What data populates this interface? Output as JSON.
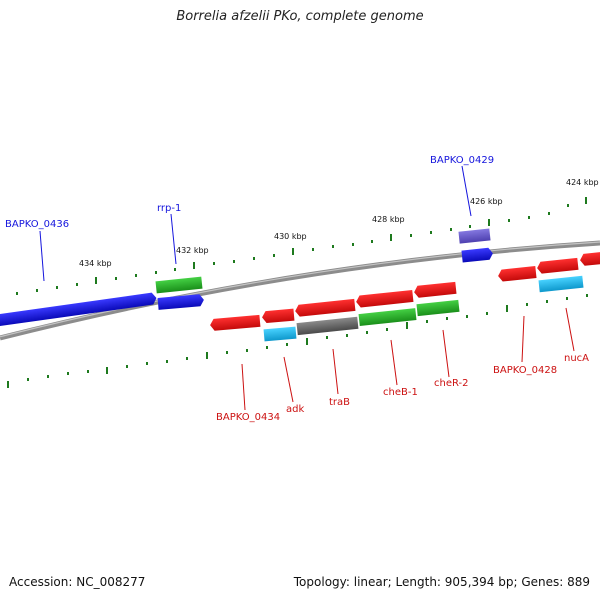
{
  "title": "Borrelia afzelii PKo, complete genome",
  "footer": {
    "accession": "Accession: NC_008277",
    "summary": "Topology: linear; Length: 905,394 bp; Genes: 889"
  },
  "scale_labels": [
    "434 kbp",
    "432 kbp",
    "430 kbp",
    "428 kbp",
    "426 kbp",
    "424 kbp"
  ],
  "gene_labels": {
    "above": [
      "BAPKO_0436",
      "rrp-1",
      "BAPKO_0429"
    ],
    "below": [
      "BAPKO_0434",
      "adk",
      "traB",
      "cheB-1",
      "cheR-2",
      "BAPKO_0428",
      "nucA"
    ]
  },
  "colors": {
    "forward_cds": "#1515e0",
    "reverse_cds": "#e01515",
    "rna_or_secondary": "#18b5e8",
    "green_feature": "#22b022",
    "grey_feature": "#6a6a6a",
    "purple_feature": "#6a5ccc",
    "backbone": "#8c8c8c",
    "tick": "#1e7a1e",
    "label_forward": "#1515dd",
    "label_reverse": "#cc1111"
  }
}
